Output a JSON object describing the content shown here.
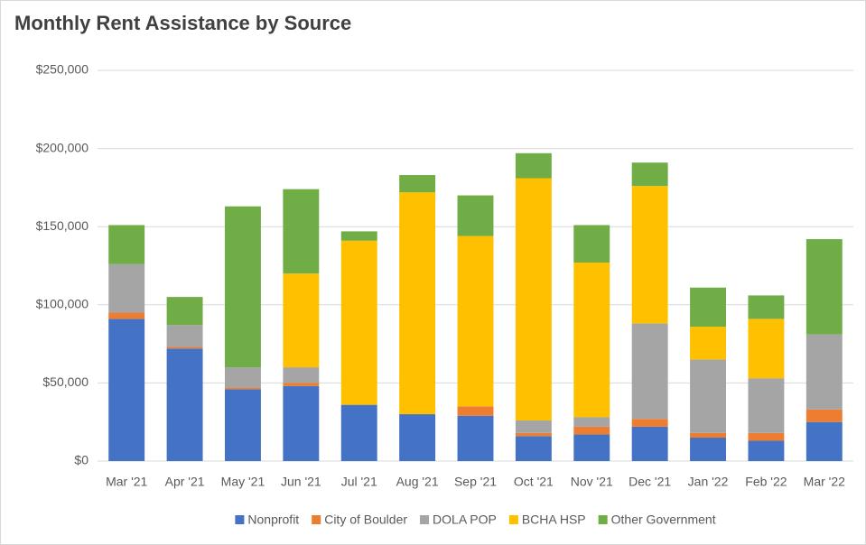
{
  "chart_data": {
    "type": "stacked_bar",
    "title": "Monthly Rent Assistance by Source",
    "categories": [
      "Mar '21",
      "Apr '21",
      "May '21",
      "Jun '21",
      "Jul '21",
      "Aug '21",
      "Sep '21",
      "Oct '21",
      "Nov '21",
      "Dec '21",
      "Jan '22",
      "Feb '22",
      "Mar '22"
    ],
    "series": [
      {
        "name": "Nonprofit",
        "color": "#4472c4",
        "values": [
          91000,
          72000,
          46000,
          48000,
          36000,
          30000,
          29000,
          16000,
          17000,
          22000,
          15000,
          13000,
          25000
        ]
      },
      {
        "name": "City of Boulder",
        "color": "#ed7d31",
        "values": [
          4000,
          1000,
          1000,
          2000,
          0,
          0,
          6000,
          2000,
          5000,
          5000,
          3000,
          5000,
          8000
        ]
      },
      {
        "name": "DOLA POP",
        "color": "#a5a5a5",
        "values": [
          31000,
          14000,
          13000,
          10000,
          0,
          0,
          0,
          8000,
          6000,
          61000,
          47000,
          35000,
          48000
        ]
      },
      {
        "name": "BCHA HSP",
        "color": "#ffc000",
        "values": [
          0,
          0,
          0,
          60000,
          105000,
          142000,
          109000,
          155000,
          99000,
          88000,
          21000,
          38000,
          0
        ]
      },
      {
        "name": "Other Government",
        "color": "#70ad47",
        "values": [
          25000,
          18000,
          103000,
          54000,
          6000,
          11000,
          26000,
          16000,
          24000,
          15000,
          25000,
          15000,
          61000
        ]
      }
    ],
    "ylim": [
      0,
      250000
    ],
    "yticks": [
      {
        "value": 0,
        "label": "$0"
      },
      {
        "value": 50000,
        "label": "$50,000"
      },
      {
        "value": 100000,
        "label": "$100,000"
      },
      {
        "value": 150000,
        "label": "$150,000"
      },
      {
        "value": 200000,
        "label": "$200,000"
      },
      {
        "value": 250000,
        "label": "$250,000"
      }
    ],
    "grid": true,
    "legend": "bottom"
  }
}
